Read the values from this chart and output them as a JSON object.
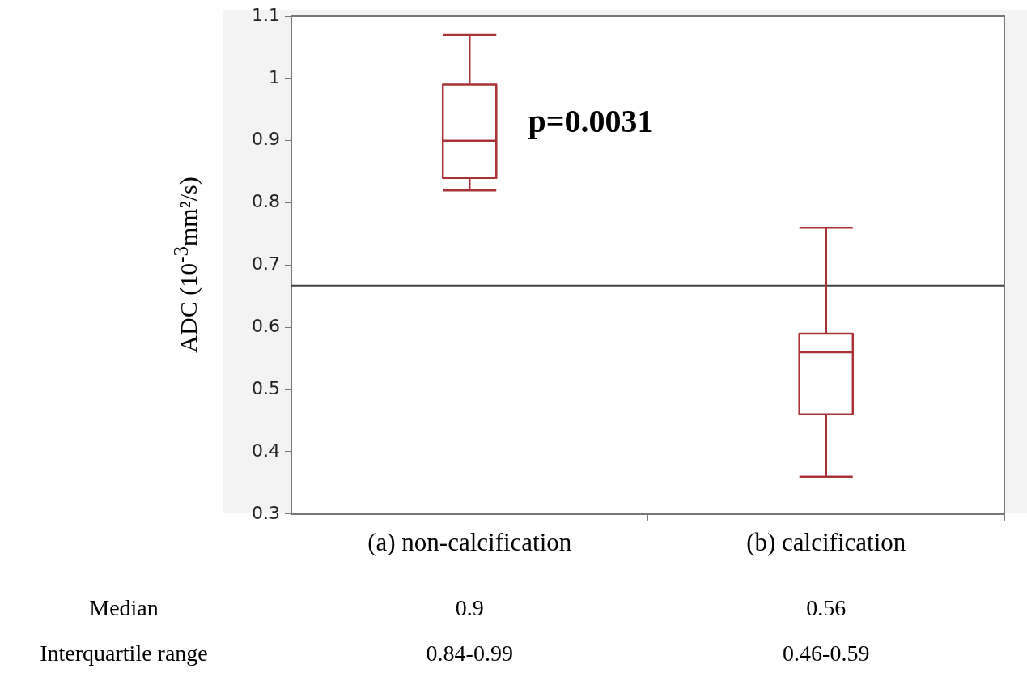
{
  "chart_data": {
    "type": "box",
    "ylabel": "ADC (10$^{-3}$mm²/s)",
    "categories": [
      "(a) non-calcification",
      "(b) calcification"
    ],
    "color": "#a83236",
    "boxes": [
      {
        "low": 0.82,
        "q1": 0.84,
        "median": 0.9,
        "q3": 0.99,
        "high": 1.07
      },
      {
        "low": 0.36,
        "q1": 0.46,
        "median": 0.56,
        "q3": 0.59,
        "high": 0.76
      }
    ],
    "ylim": [
      0.3,
      1.1
    ],
    "yticks": [
      0.3,
      0.4,
      0.5,
      0.6,
      0.7,
      0.8,
      0.9,
      1,
      1.1
    ],
    "ref_lines": [
      {
        "axis": "y",
        "value": 0.667,
        "color": "#404040"
      }
    ],
    "annotations": [
      "p=0.0031",
      "Median",
      "0.9",
      "0.56",
      "Interquartile range",
      "0.84-0.99",
      "0.46-0.59"
    ]
  }
}
